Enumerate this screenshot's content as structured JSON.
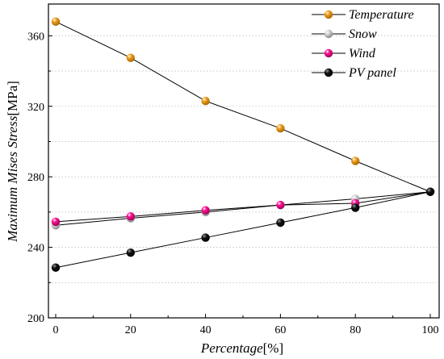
{
  "chart_data": {
    "type": "line",
    "x": [
      0,
      20,
      40,
      60,
      80,
      100
    ],
    "xlabel": "Percentage",
    "xlabel_unit": "[%]",
    "ylabel": "Maximum Mises Stress",
    "ylabel_unit": "[MPa]",
    "xlim": [
      -1,
      100
    ],
    "ylim": [
      200,
      378
    ],
    "xticks": [
      "0",
      "20",
      "40",
      "60",
      "80",
      "100"
    ],
    "yticks": [
      "200",
      "240",
      "280",
      "320",
      "360"
    ],
    "ytick_values": [
      200,
      240,
      280,
      320,
      360
    ],
    "xtick_values": [
      0,
      20,
      40,
      60,
      80,
      100
    ],
    "minor_grid": true,
    "legend_position": "top-right",
    "series": [
      {
        "name": "Temperature",
        "color": "#f0a020",
        "values": [
          368,
          347.5,
          323,
          307.5,
          289,
          271.5
        ]
      },
      {
        "name": "Snow",
        "color": "#c0c0c0",
        "values": [
          252.5,
          256.5,
          260,
          264,
          267.5,
          271.5
        ]
      },
      {
        "name": "Wind",
        "color": "#ff1493",
        "values": [
          254.5,
          257.5,
          261,
          264,
          265,
          271.5
        ]
      },
      {
        "name": "PV panel",
        "color": "#111111",
        "values": [
          228.5,
          237,
          245.5,
          254,
          262.5,
          271.5
        ]
      }
    ]
  }
}
